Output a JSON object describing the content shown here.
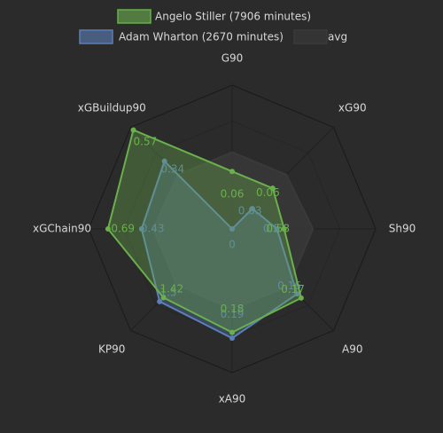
{
  "chart_data": {
    "type": "radar",
    "categories": [
      "G90",
      "xG90",
      "Sh90",
      "A90",
      "xA90",
      "KP90",
      "xGChain90",
      "xGBuildup90"
    ],
    "rlims": [
      [
        0,
        0.15
      ],
      [
        0,
        0.15
      ],
      [
        0,
        1.6
      ],
      [
        0,
        0.25
      ],
      [
        0,
        0.25
      ],
      [
        0,
        2.1
      ],
      [
        -0.27,
        0.84
      ],
      [
        -0.16,
        0.59
      ]
    ],
    "series": [
      {
        "name": "avg",
        "color": "#3a3a3a",
        "values": [
          0.08,
          0.08,
          0.9,
          0.14,
          0.14,
          1.15,
          0.34,
          0.24
        ]
      },
      {
        "name": "Adam Wharton (2670 minutes)",
        "color": "#5b7fb8",
        "values": [
          0.0,
          0.03,
          0.5,
          0.16,
          0.19,
          1.5,
          0.43,
          0.34
        ]
      },
      {
        "name": "Angelo Stiller (7906 minutes)",
        "color": "#6ab04c",
        "values": [
          0.06,
          0.06,
          0.58,
          0.17,
          0.18,
          1.42,
          0.69,
          0.57
        ]
      }
    ],
    "legend_order": [
      2,
      1,
      0
    ]
  }
}
